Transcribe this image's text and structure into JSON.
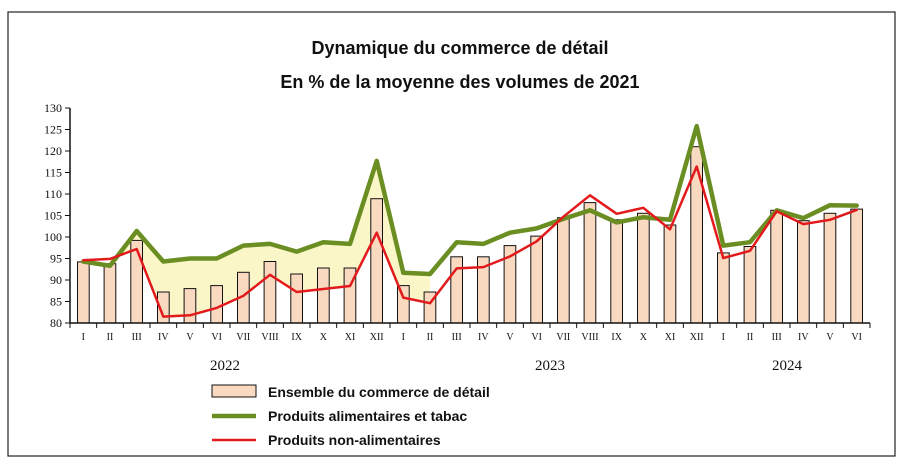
{
  "chart_data": {
    "type": "bar",
    "title": "Dynamique du commerce de détail",
    "subtitle": "En % de la moyenne des volumes de 2021",
    "xlabel": "",
    "ylabel": "",
    "ylim": [
      80,
      130
    ],
    "yticks": [
      80,
      85,
      90,
      95,
      100,
      105,
      110,
      115,
      120,
      125,
      130
    ],
    "categories": [
      "I",
      "II",
      "III",
      "IV",
      "V",
      "VI",
      "VII",
      "VIII",
      "IX",
      "X",
      "XI",
      "XII",
      "I",
      "II",
      "III",
      "IV",
      "V",
      "VI",
      "VII",
      "VIII",
      "IX",
      "X",
      "XI",
      "XII",
      "I",
      "II",
      "III",
      "IV",
      "V",
      "VI"
    ],
    "year_groups": [
      {
        "label": "2022",
        "start": 0,
        "end": 11
      },
      {
        "label": "2023",
        "start": 12,
        "end": 23
      },
      {
        "label": "2024",
        "start": 24,
        "end": 29
      }
    ],
    "series": [
      {
        "name": "Ensemble du commerce de détail",
        "type": "bar",
        "color": "#f9d9c0",
        "values": [
          94.2,
          93.8,
          99.2,
          87.2,
          88.0,
          88.7,
          91.8,
          94.3,
          91.4,
          92.8,
          92.8,
          108.9,
          88.7,
          87.2,
          95.4,
          95.4,
          98.0,
          100.2,
          104.5,
          108.0,
          104.0,
          105.5,
          102.8,
          121.0,
          96.3,
          97.8,
          106.2,
          103.8,
          105.5,
          106.5
        ]
      },
      {
        "name": "Produits alimentaires et tabac",
        "type": "line",
        "color": "#6b8e23",
        "values": [
          94.3,
          93.3,
          101.4,
          94.3,
          95.0,
          95.0,
          98.0,
          98.4,
          96.6,
          98.8,
          98.4,
          117.7,
          91.7,
          91.4,
          98.8,
          98.4,
          101.0,
          102.0,
          104.2,
          106.2,
          103.4,
          104.6,
          104.0,
          125.8,
          98.0,
          98.8,
          106.2,
          104.4,
          107.4,
          107.3
        ]
      },
      {
        "name": "Produits non-alimentaires",
        "type": "line",
        "color": "#e31a1c",
        "values": [
          94.6,
          94.9,
          97.2,
          81.5,
          81.8,
          83.5,
          86.3,
          91.2,
          87.2,
          87.9,
          88.6,
          101.0,
          85.9,
          84.6,
          92.7,
          93.0,
          95.5,
          99.0,
          104.7,
          109.7,
          105.4,
          106.8,
          101.8,
          116.4,
          95.1,
          96.8,
          106.0,
          103.0,
          104.0,
          106.3
        ]
      }
    ],
    "legend_position": "bottom-left",
    "grid": false
  }
}
